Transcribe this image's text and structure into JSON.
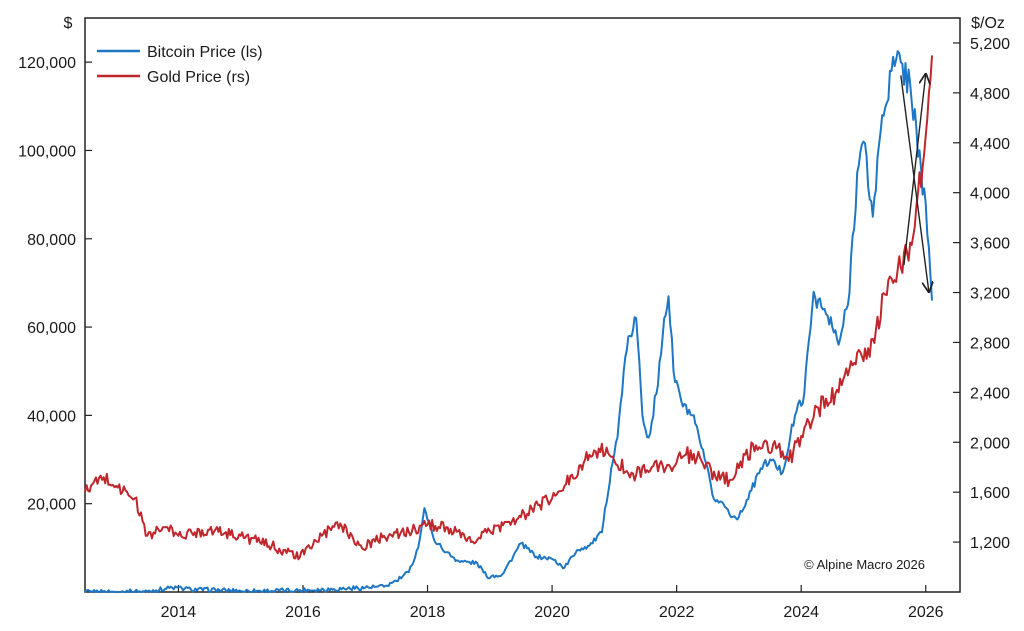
{
  "chart_data": {
    "type": "line",
    "title": "",
    "left_axis": {
      "unit_label": "$",
      "ylim": [
        0,
        130000
      ],
      "ticks": [
        20000,
        40000,
        60000,
        80000,
        100000,
        120000
      ],
      "tick_labels": [
        "20,000",
        "40,000",
        "60,000",
        "80,000",
        "100,000",
        "120,000"
      ]
    },
    "right_axis": {
      "unit_label": "$/Oz",
      "ylim": [
        800,
        5400
      ],
      "ticks": [
        1200,
        1600,
        2000,
        2400,
        2800,
        3200,
        3600,
        4000,
        4400,
        4800,
        5200
      ],
      "tick_labels": [
        "1,200",
        "1,600",
        "2,000",
        "2,400",
        "2,800",
        "3,200",
        "3,600",
        "4,000",
        "4,400",
        "4,800",
        "5,200"
      ]
    },
    "x_axis": {
      "xlim": [
        2012.5,
        2026.55
      ],
      "ticks": [
        2014,
        2016,
        2018,
        2020,
        2022,
        2024,
        2026
      ],
      "tick_labels": [
        "2014",
        "2016",
        "2018",
        "2020",
        "2022",
        "2024",
        "2026"
      ]
    },
    "legend_position": "top-left",
    "grid": false,
    "colors": {
      "bitcoin": "#1f77c4",
      "gold": "#c0272d",
      "axis": "#222222"
    },
    "series": [
      {
        "name": "Bitcoin Price (ls)",
        "axis": "left",
        "color": "#1f77c4",
        "x": [
          2012.5,
          2013.0,
          2013.3,
          2013.5,
          2013.9,
          2014.2,
          2015.0,
          2015.5,
          2016.0,
          2016.5,
          2017.0,
          2017.3,
          2017.5,
          2017.7,
          2017.85,
          2017.95,
          2018.1,
          2018.3,
          2018.5,
          2018.8,
          2018.95,
          2019.2,
          2019.5,
          2019.75,
          2020.0,
          2020.2,
          2020.4,
          2020.6,
          2020.8,
          2020.95,
          2021.05,
          2021.15,
          2021.25,
          2021.35,
          2021.45,
          2021.55,
          2021.7,
          2021.8,
          2021.87,
          2021.95,
          2022.1,
          2022.25,
          2022.45,
          2022.6,
          2022.75,
          2022.9,
          2023.0,
          2023.2,
          2023.35,
          2023.5,
          2023.7,
          2023.9,
          2024.05,
          2024.2,
          2024.35,
          2024.5,
          2024.6,
          2024.75,
          2024.9,
          2025.0,
          2025.15,
          2025.3,
          2025.45,
          2025.6,
          2025.75,
          2025.85,
          2025.95,
          2026.0,
          2026.05,
          2026.1
        ],
        "values": [
          10,
          13,
          100,
          120,
          1000,
          600,
          250,
          250,
          430,
          650,
          1000,
          1200,
          2500,
          4500,
          10000,
          19000,
          12000,
          9000,
          7000,
          6500,
          3500,
          4000,
          11000,
          8000,
          7500,
          5500,
          9500,
          10500,
          13500,
          28000,
          35000,
          50000,
          58000,
          62000,
          40000,
          35000,
          47000,
          62000,
          67000,
          50000,
          42000,
          40000,
          30000,
          21000,
          20000,
          17000,
          17000,
          23000,
          28000,
          30000,
          27000,
          40000,
          45000,
          68000,
          64000,
          60000,
          56000,
          65000,
          95000,
          102000,
          85000,
          108000,
          118000,
          120000,
          115000,
          105000,
          90000,
          88000,
          78000,
          66000
        ]
      },
      {
        "name": "Gold Price (rs)",
        "axis": "right",
        "color": "#c0272d",
        "x": [
          2012.5,
          2012.8,
          2013.0,
          2013.3,
          2013.5,
          2013.8,
          2014.0,
          2014.5,
          2015.0,
          2015.5,
          2015.95,
          2016.3,
          2016.6,
          2016.95,
          2017.3,
          2017.7,
          2018.0,
          2018.3,
          2018.7,
          2019.0,
          2019.5,
          2019.8,
          2020.0,
          2020.2,
          2020.6,
          2020.75,
          2021.0,
          2021.3,
          2021.6,
          2021.9,
          2022.15,
          2022.4,
          2022.7,
          2022.9,
          2023.1,
          2023.4,
          2023.6,
          2023.8,
          2024.0,
          2024.2,
          2024.4,
          2024.6,
          2024.8,
          2025.0,
          2025.2,
          2025.4,
          2025.6,
          2025.75,
          2025.85,
          2025.95,
          2026.05,
          2026.1
        ],
        "values": [
          1600,
          1720,
          1650,
          1550,
          1250,
          1320,
          1250,
          1300,
          1250,
          1170,
          1080,
          1250,
          1350,
          1150,
          1250,
          1280,
          1340,
          1320,
          1200,
          1290,
          1400,
          1500,
          1550,
          1650,
          1900,
          1950,
          1850,
          1750,
          1800,
          1800,
          1900,
          1850,
          1700,
          1700,
          1900,
          2000,
          1950,
          1850,
          2050,
          2200,
          2350,
          2400,
          2650,
          2650,
          2900,
          3300,
          3400,
          3600,
          3900,
          4200,
          4800,
          5100
        ]
      }
    ],
    "annotations": [
      {
        "type": "arrow",
        "axis": "right",
        "from": [
          2025.65,
          3420
        ],
        "to": [
          2026.0,
          4950
        ],
        "color": "#222222"
      },
      {
        "type": "arrow",
        "axis": "left",
        "from": [
          2025.6,
          117000
        ],
        "to": [
          2026.05,
          68000
        ],
        "color": "#222222"
      }
    ],
    "copyright": "© Alpine Macro 2026"
  }
}
